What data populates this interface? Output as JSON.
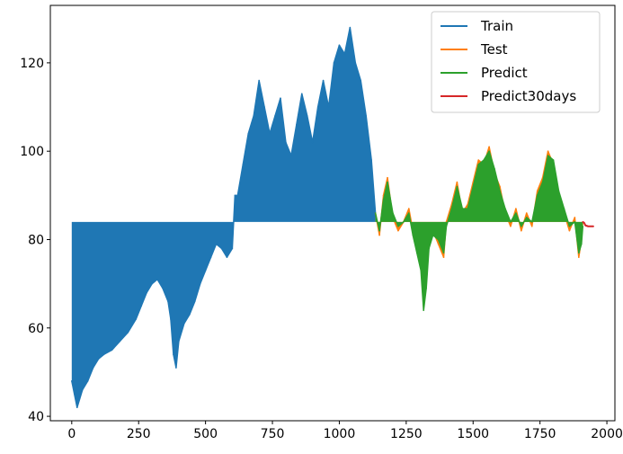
{
  "chart_data": {
    "type": "line",
    "title": "",
    "xlabel": "",
    "ylabel": "",
    "xlim": [
      -80,
      2030
    ],
    "ylim": [
      39,
      133
    ],
    "xticks": [
      0,
      250,
      500,
      750,
      1000,
      1250,
      1500,
      1750,
      2000
    ],
    "xtick_labels": [
      "0",
      "250",
      "500",
      "750",
      "1000",
      "1250",
      "1500",
      "1750",
      "2000"
    ],
    "yticks": [
      40,
      60,
      80,
      100,
      120
    ],
    "ytick_labels": [
      "40",
      "60",
      "80",
      "100",
      "120"
    ],
    "legend_position": "top-right",
    "fill_baseline": 84,
    "series": [
      {
        "name": "Train",
        "color": "#1f77b4",
        "x": [
          0,
          10,
          20,
          40,
          60,
          80,
          100,
          120,
          150,
          180,
          210,
          240,
          260,
          280,
          300,
          320,
          340,
          360,
          370,
          380,
          390,
          400,
          420,
          440,
          460,
          480,
          500,
          520,
          540,
          560,
          580,
          600,
          610,
          620,
          640,
          660,
          680,
          700,
          720,
          740,
          760,
          780,
          800,
          820,
          840,
          860,
          880,
          900,
          920,
          940,
          960,
          980,
          1000,
          1020,
          1040,
          1060,
          1080,
          1100,
          1120,
          1135
        ],
        "y": [
          48,
          45,
          42,
          46,
          48,
          51,
          53,
          54,
          55,
          57,
          59,
          62,
          65,
          68,
          70,
          71,
          69,
          66,
          62,
          54,
          51,
          57,
          61,
          63,
          66,
          70,
          73,
          76,
          79,
          78,
          76,
          78,
          90,
          90,
          97,
          104,
          108,
          116,
          110,
          104,
          108,
          112,
          102,
          99,
          106,
          113,
          108,
          102,
          110,
          116,
          110,
          120,
          124,
          122,
          128,
          120,
          116,
          108,
          98,
          86
        ]
      },
      {
        "name": "Test",
        "color": "#ff7f0e",
        "x": [
          1135,
          1150,
          1165,
          1180,
          1200,
          1220,
          1240,
          1260,
          1275,
          1290,
          1305,
          1315,
          1325,
          1335,
          1350,
          1370,
          1390,
          1400,
          1420,
          1440,
          1460,
          1480,
          1500,
          1520,
          1540,
          1560,
          1580,
          1600,
          1620,
          1640,
          1660,
          1680,
          1700,
          1720,
          1740,
          1760,
          1780,
          1800,
          1820,
          1840,
          1860,
          1880,
          1895,
          1905,
          1910
        ],
        "y": [
          86,
          81,
          90,
          94,
          85,
          82,
          84,
          87,
          82,
          78,
          74,
          65,
          70,
          79,
          82,
          79,
          76,
          84,
          88,
          93,
          86,
          88,
          93,
          98,
          97,
          101,
          95,
          92,
          86,
          83,
          87,
          82,
          86,
          83,
          91,
          94,
          100,
          97,
          90,
          86,
          82,
          85,
          76,
          80,
          84
        ]
      },
      {
        "name": "Predict",
        "color": "#2ca02c",
        "x": [
          1135,
          1150,
          1165,
          1180,
          1200,
          1220,
          1240,
          1260,
          1275,
          1290,
          1305,
          1315,
          1325,
          1335,
          1350,
          1370,
          1390,
          1400,
          1420,
          1440,
          1460,
          1480,
          1500,
          1520,
          1540,
          1560,
          1580,
          1600,
          1620,
          1640,
          1660,
          1680,
          1700,
          1720,
          1740,
          1760,
          1780,
          1800,
          1820,
          1840,
          1860,
          1880,
          1895,
          1905,
          1910
        ],
        "y": [
          86,
          82,
          89,
          93,
          86,
          83,
          84,
          86,
          81,
          77,
          73,
          64,
          69,
          78,
          81,
          80,
          77,
          83,
          87,
          92,
          87,
          87,
          92,
          97,
          98,
          100,
          96,
          91,
          87,
          84,
          86,
          83,
          85,
          84,
          90,
          93,
          99,
          98,
          91,
          87,
          83,
          84,
          77,
          79,
          83
        ]
      },
      {
        "name": "Predict30days",
        "color": "#d62728",
        "x": [
          1910,
          1915,
          1920,
          1930,
          1940,
          1950
        ],
        "y": [
          84,
          83.8,
          83.2,
          83,
          83,
          83
        ]
      }
    ]
  }
}
